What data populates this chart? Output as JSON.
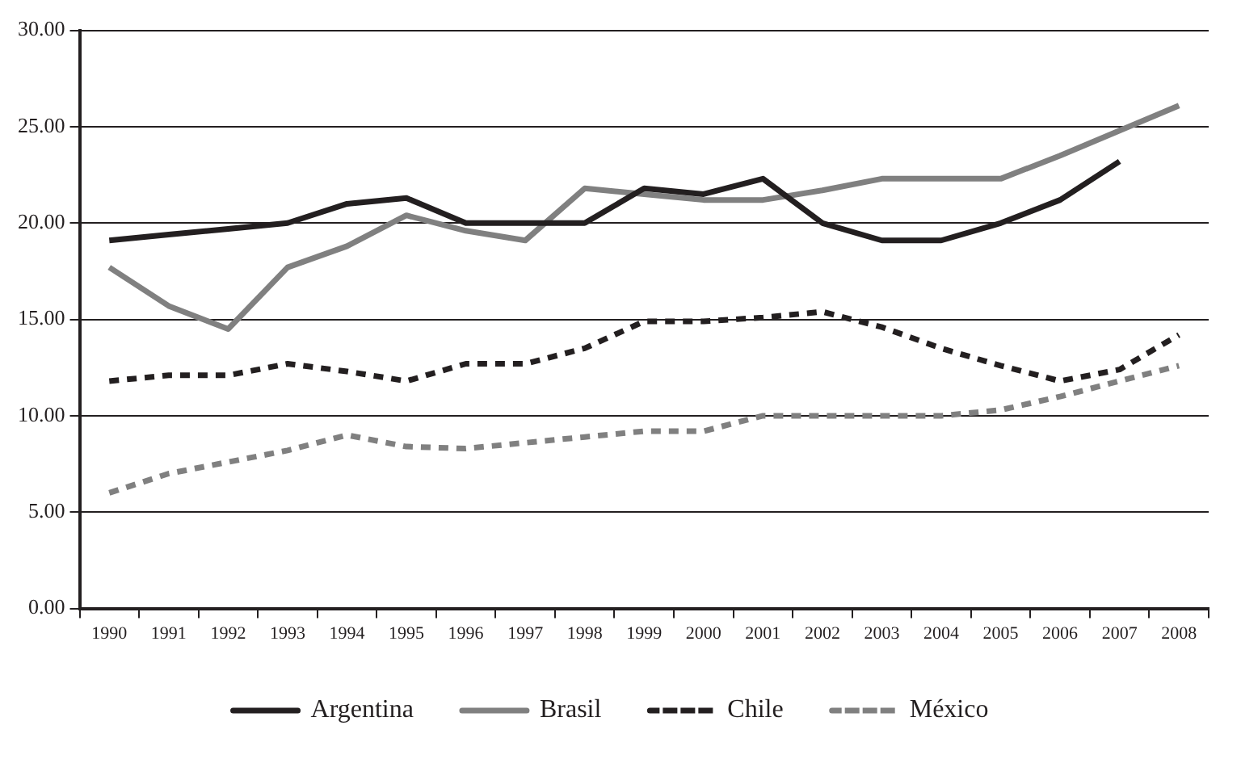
{
  "chart_data": {
    "type": "line",
    "categories": [
      "1990",
      "1991",
      "1992",
      "1993",
      "1994",
      "1995",
      "1996",
      "1997",
      "1998",
      "1999",
      "2000",
      "2001",
      "2002",
      "2003",
      "2004",
      "2005",
      "2006",
      "2007",
      "2008"
    ],
    "series": [
      {
        "name": "Argentina",
        "color": "#231f20",
        "line_style": "solid",
        "values": [
          19.1,
          19.4,
          19.7,
          20.0,
          21.0,
          21.3,
          20.0,
          20.0,
          20.0,
          21.8,
          21.5,
          22.3,
          20.0,
          19.1,
          19.1,
          20.0,
          21.2,
          23.2,
          null
        ]
      },
      {
        "name": "Brasil",
        "color": "#808080",
        "line_style": "solid",
        "values": [
          17.7,
          15.7,
          14.5,
          17.7,
          18.8,
          20.4,
          19.6,
          19.1,
          21.8,
          21.5,
          21.2,
          21.2,
          21.7,
          22.3,
          22.3,
          22.3,
          23.5,
          24.8,
          26.1
        ]
      },
      {
        "name": "Chile",
        "color": "#231f20",
        "line_style": "dashed",
        "values": [
          11.8,
          12.1,
          12.1,
          12.7,
          12.3,
          11.8,
          12.7,
          12.7,
          13.5,
          14.9,
          14.9,
          15.1,
          15.4,
          14.6,
          13.5,
          12.6,
          11.8,
          12.4,
          14.2
        ]
      },
      {
        "name": "México",
        "color": "#808080",
        "line_style": "dashed",
        "values": [
          6.0,
          7.0,
          7.6,
          8.2,
          9.0,
          8.4,
          8.3,
          8.6,
          8.9,
          9.2,
          9.2,
          10.0,
          10.0,
          10.0,
          10.0,
          10.3,
          11.0,
          11.8,
          12.6
        ]
      }
    ],
    "ylim": [
      0,
      30
    ],
    "yticks": [
      {
        "value": 0,
        "label": "0.00"
      },
      {
        "value": 5,
        "label": "5.00"
      },
      {
        "value": 10,
        "label": "10.00"
      },
      {
        "value": 15,
        "label": "15.00"
      },
      {
        "value": 20,
        "label": "20.00"
      },
      {
        "value": 25,
        "label": "25.00"
      },
      {
        "value": 30,
        "label": "30.00"
      }
    ],
    "grid": "y",
    "legend": "bottom",
    "marker": "none"
  }
}
